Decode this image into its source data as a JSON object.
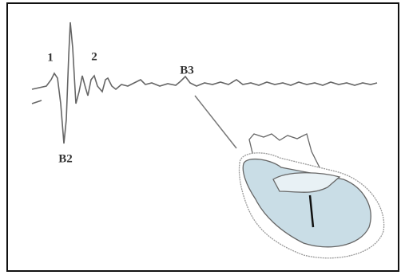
{
  "labels": [
    "1",
    "2",
    "B3",
    "B2"
  ]
}
